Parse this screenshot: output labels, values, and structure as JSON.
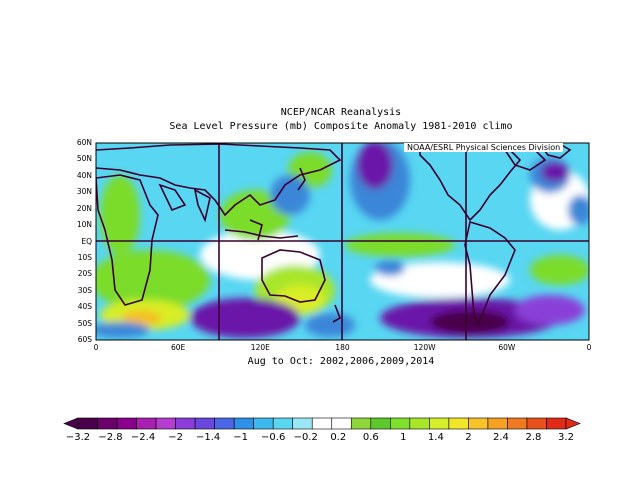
{
  "title": "NCEP/NCAR Reanalysis",
  "subtitle": "Sea Level Pressure (mb) Composite Anomaly 1981-2010 climo",
  "period": "Aug to Oct: 2002,2006,2009,2014",
  "credit": "NOAA/ESRL Physical Sciences Division",
  "lat_labels": [
    "60N",
    "50N",
    "40N",
    "30N",
    "20N",
    "10N",
    "EQ",
    "10S",
    "20S",
    "30S",
    "40S",
    "50S",
    "60S"
  ],
  "lon_labels": [
    "0",
    "60E",
    "120E",
    "180",
    "120W",
    "60W",
    "0"
  ],
  "colorbar": {
    "labels": [
      "-3.2",
      "-2.8",
      "-2.4",
      "-2",
      "-1.4",
      "-1",
      "-0.6",
      "-0.2",
      "0.2",
      "0.6",
      "1",
      "1.4",
      "2",
      "2.4",
      "2.8",
      "3.2"
    ],
    "colors": [
      "#4a004a",
      "#6a006a",
      "#8a008c",
      "#a820b0",
      "#b43ccf",
      "#8c3cd8",
      "#6a48e0",
      "#4c66e6",
      "#2e90e6",
      "#3cb8ee",
      "#5ad6f0",
      "#9ae8f6",
      "#ffffff",
      "#ffffff",
      "#8ed63c",
      "#5cc82c",
      "#7ee02a",
      "#a8e62a",
      "#d4ee2a",
      "#f2e62a",
      "#f6c428",
      "#f6a024",
      "#f07a20",
      "#e8501c",
      "#e02a18"
    ]
  },
  "map_colors": {
    "strong_negative": "#6a18a8",
    "negative": "#3a86d8",
    "weak_negative": "#58d6f2",
    "neutral": "#ffffff",
    "weak_positive": "#7cdc2a",
    "positive": "#d8ee28",
    "strong_positive": "#f4c020"
  }
}
